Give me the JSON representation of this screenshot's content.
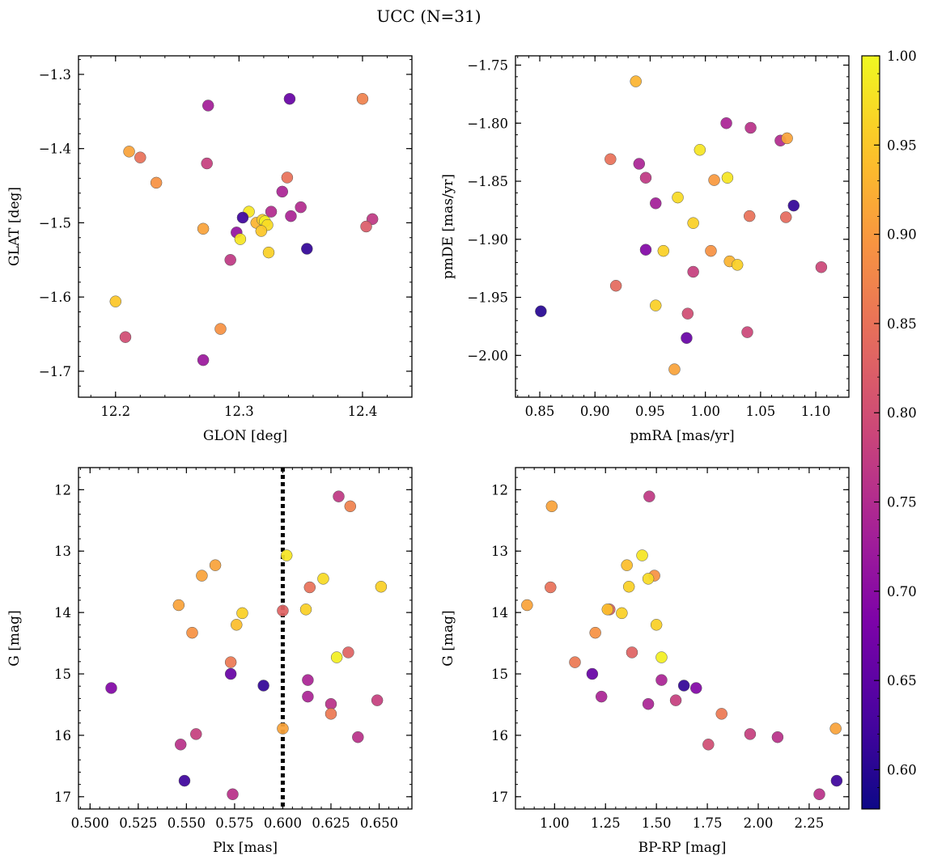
{
  "figure": {
    "title": "UCC (N=31)"
  },
  "colorbar": {
    "min": 0.578,
    "max": 1.0,
    "ticks": [
      0.6,
      0.65,
      0.7,
      0.75,
      0.8,
      0.85,
      0.9,
      0.95,
      1.0
    ],
    "tick_labels": [
      "0.60",
      "0.65",
      "0.70",
      "0.75",
      "0.80",
      "0.85",
      "0.90",
      "0.95",
      "1.00"
    ],
    "colormap": "plasma"
  },
  "chart_data": [
    {
      "type": "scatter",
      "id": "glon-glat",
      "xlabel": "GLON [deg]",
      "ylabel": "GLAT [deg]",
      "xlim": [
        12.17,
        12.44
      ],
      "ylim": [
        -1.735,
        -1.275
      ],
      "y_inverted": false,
      "xticks": [
        12.2,
        12.3,
        12.4
      ],
      "xtick_labels": [
        "12.2",
        "12.3",
        "12.4"
      ],
      "yticks": [
        -1.3,
        -1.4,
        -1.5,
        -1.6,
        -1.7
      ],
      "ytick_labels": [
        "−1.3",
        "−1.4",
        "−1.5",
        "−1.6",
        "−1.7"
      ],
      "points": [
        {
          "x": 12.275,
          "y": -1.342,
          "c": 0.73
        },
        {
          "x": 12.341,
          "y": -1.333,
          "c": 0.66
        },
        {
          "x": 12.4,
          "y": -1.333,
          "c": 0.87
        },
        {
          "x": 12.211,
          "y": -1.404,
          "c": 0.91
        },
        {
          "x": 12.22,
          "y": -1.412,
          "c": 0.85
        },
        {
          "x": 12.274,
          "y": -1.42,
          "c": 0.78
        },
        {
          "x": 12.233,
          "y": -1.446,
          "c": 0.89
        },
        {
          "x": 12.339,
          "y": -1.439,
          "c": 0.85
        },
        {
          "x": 12.335,
          "y": -1.458,
          "c": 0.74
        },
        {
          "x": 12.35,
          "y": -1.479,
          "c": 0.75
        },
        {
          "x": 12.342,
          "y": -1.491,
          "c": 0.74
        },
        {
          "x": 12.326,
          "y": -1.485,
          "c": 0.75
        },
        {
          "x": 12.308,
          "y": -1.485,
          "c": 0.98
        },
        {
          "x": 12.303,
          "y": -1.493,
          "c": 0.62
        },
        {
          "x": 12.314,
          "y": -1.5,
          "c": 0.93
        },
        {
          "x": 12.319,
          "y": -1.496,
          "c": 0.96
        },
        {
          "x": 12.321,
          "y": -1.498,
          "c": 0.99
        },
        {
          "x": 12.323,
          "y": -1.503,
          "c": 0.97
        },
        {
          "x": 12.318,
          "y": -1.511,
          "c": 0.95
        },
        {
          "x": 12.298,
          "y": -1.513,
          "c": 0.71
        },
        {
          "x": 12.271,
          "y": -1.508,
          "c": 0.91
        },
        {
          "x": 12.301,
          "y": -1.522,
          "c": 0.98
        },
        {
          "x": 12.324,
          "y": -1.54,
          "c": 0.96
        },
        {
          "x": 12.355,
          "y": -1.535,
          "c": 0.61
        },
        {
          "x": 12.408,
          "y": -1.495,
          "c": 0.77
        },
        {
          "x": 12.403,
          "y": -1.505,
          "c": 0.82
        },
        {
          "x": 12.293,
          "y": -1.55,
          "c": 0.77
        },
        {
          "x": 12.2,
          "y": -1.606,
          "c": 0.95
        },
        {
          "x": 12.208,
          "y": -1.654,
          "c": 0.8
        },
        {
          "x": 12.285,
          "y": -1.643,
          "c": 0.89
        },
        {
          "x": 12.271,
          "y": -1.685,
          "c": 0.72
        }
      ]
    },
    {
      "type": "scatter",
      "id": "pmra-pmde",
      "xlabel": "pmRA [mas/yr]",
      "ylabel": "pmDE [mas/yr]",
      "xlim": [
        0.828,
        1.13
      ],
      "ylim": [
        -2.036,
        -1.742
      ],
      "y_inverted": false,
      "xticks": [
        0.85,
        0.9,
        0.95,
        1.0,
        1.05,
        1.1
      ],
      "xtick_labels": [
        "0.85",
        "0.90",
        "0.95",
        "1.00",
        "1.05",
        "1.10"
      ],
      "yticks": [
        -1.75,
        -1.8,
        -1.85,
        -1.9,
        -1.95,
        -2.0
      ],
      "ytick_labels": [
        "−1.75",
        "−1.80",
        "−1.85",
        "−1.90",
        "−1.95",
        "−2.00"
      ],
      "points": [
        {
          "x": 0.937,
          "y": -1.764,
          "c": 0.93
        },
        {
          "x": 1.019,
          "y": -1.8,
          "c": 0.74
        },
        {
          "x": 1.041,
          "y": -1.804,
          "c": 0.76
        },
        {
          "x": 1.068,
          "y": -1.815,
          "c": 0.75
        },
        {
          "x": 1.074,
          "y": -1.813,
          "c": 0.91
        },
        {
          "x": 0.995,
          "y": -1.823,
          "c": 0.98
        },
        {
          "x": 0.914,
          "y": -1.831,
          "c": 0.85
        },
        {
          "x": 0.94,
          "y": -1.835,
          "c": 0.74
        },
        {
          "x": 0.946,
          "y": -1.847,
          "c": 0.77
        },
        {
          "x": 1.02,
          "y": -1.847,
          "c": 0.98
        },
        {
          "x": 1.008,
          "y": -1.849,
          "c": 0.9
        },
        {
          "x": 0.975,
          "y": -1.864,
          "c": 0.97
        },
        {
          "x": 0.955,
          "y": -1.869,
          "c": 0.73
        },
        {
          "x": 1.08,
          "y": -1.871,
          "c": 0.61
        },
        {
          "x": 1.04,
          "y": -1.88,
          "c": 0.85
        },
        {
          "x": 1.073,
          "y": -1.881,
          "c": 0.84
        },
        {
          "x": 0.989,
          "y": -1.886,
          "c": 0.96
        },
        {
          "x": 0.946,
          "y": -1.909,
          "c": 0.69
        },
        {
          "x": 0.962,
          "y": -1.91,
          "c": 0.96
        },
        {
          "x": 1.005,
          "y": -1.91,
          "c": 0.89
        },
        {
          "x": 1.022,
          "y": -1.919,
          "c": 0.93
        },
        {
          "x": 1.029,
          "y": -1.922,
          "c": 0.96
        },
        {
          "x": 1.105,
          "y": -1.924,
          "c": 0.79
        },
        {
          "x": 0.989,
          "y": -1.928,
          "c": 0.78
        },
        {
          "x": 0.919,
          "y": -1.94,
          "c": 0.84
        },
        {
          "x": 0.955,
          "y": -1.957,
          "c": 0.96
        },
        {
          "x": 0.851,
          "y": -1.962,
          "c": 0.6
        },
        {
          "x": 0.984,
          "y": -1.964,
          "c": 0.8
        },
        {
          "x": 1.038,
          "y": -1.98,
          "c": 0.79
        },
        {
          "x": 0.983,
          "y": -1.985,
          "c": 0.66
        },
        {
          "x": 0.972,
          "y": -2.012,
          "c": 0.91
        }
      ]
    },
    {
      "type": "scatter",
      "id": "plx-g",
      "xlabel": "Plx [mas]",
      "ylabel": "G [mag]",
      "xlim": [
        0.494,
        0.667
      ],
      "ylim": [
        11.64,
        17.2
      ],
      "y_inverted": true,
      "vline": 0.6,
      "xticks": [
        0.5,
        0.525,
        0.55,
        0.575,
        0.6,
        0.625,
        0.65
      ],
      "xtick_labels": [
        "0.500",
        "0.525",
        "0.550",
        "0.575",
        "0.600",
        "0.625",
        "0.650"
      ],
      "yticks": [
        12,
        13,
        14,
        15,
        16,
        17
      ],
      "ytick_labels": [
        "12",
        "13",
        "14",
        "15",
        "16",
        "17"
      ],
      "points": [
        {
          "x": 0.629,
          "y": 12.11,
          "c": 0.77
        },
        {
          "x": 0.635,
          "y": 12.27,
          "c": 0.87
        },
        {
          "x": 0.602,
          "y": 13.07,
          "c": 0.98
        },
        {
          "x": 0.565,
          "y": 13.23,
          "c": 0.91
        },
        {
          "x": 0.558,
          "y": 13.4,
          "c": 0.91
        },
        {
          "x": 0.621,
          "y": 13.45,
          "c": 0.97
        },
        {
          "x": 0.651,
          "y": 13.58,
          "c": 0.96
        },
        {
          "x": 0.614,
          "y": 13.59,
          "c": 0.85
        },
        {
          "x": 0.546,
          "y": 13.88,
          "c": 0.91
        },
        {
          "x": 0.612,
          "y": 13.95,
          "c": 0.96
        },
        {
          "x": 0.6,
          "y": 13.97,
          "c": 0.83
        },
        {
          "x": 0.579,
          "y": 14.01,
          "c": 0.96
        },
        {
          "x": 0.576,
          "y": 14.2,
          "c": 0.94
        },
        {
          "x": 0.553,
          "y": 14.33,
          "c": 0.89
        },
        {
          "x": 0.634,
          "y": 14.65,
          "c": 0.83
        },
        {
          "x": 0.628,
          "y": 14.73,
          "c": 0.99
        },
        {
          "x": 0.573,
          "y": 14.81,
          "c": 0.86
        },
        {
          "x": 0.573,
          "y": 15.0,
          "c": 0.66
        },
        {
          "x": 0.613,
          "y": 15.1,
          "c": 0.74
        },
        {
          "x": 0.59,
          "y": 15.19,
          "c": 0.61
        },
        {
          "x": 0.511,
          "y": 15.23,
          "c": 0.69
        },
        {
          "x": 0.613,
          "y": 15.37,
          "c": 0.74
        },
        {
          "x": 0.649,
          "y": 15.43,
          "c": 0.78
        },
        {
          "x": 0.625,
          "y": 15.49,
          "c": 0.76
        },
        {
          "x": 0.625,
          "y": 15.65,
          "c": 0.86
        },
        {
          "x": 0.6,
          "y": 15.89,
          "c": 0.91
        },
        {
          "x": 0.555,
          "y": 15.98,
          "c": 0.78
        },
        {
          "x": 0.639,
          "y": 16.03,
          "c": 0.76
        },
        {
          "x": 0.547,
          "y": 16.15,
          "c": 0.76
        },
        {
          "x": 0.549,
          "y": 16.74,
          "c": 0.62
        },
        {
          "x": 0.574,
          "y": 16.96,
          "c": 0.76
        }
      ]
    },
    {
      "type": "scatter",
      "id": "bprp-g",
      "xlabel": "BP-RP [mag]",
      "ylabel": "G [mag]",
      "xlim": [
        0.808,
        2.445
      ],
      "ylim": [
        11.64,
        17.2
      ],
      "y_inverted": true,
      "xticks": [
        1.0,
        1.25,
        1.5,
        1.75,
        2.0,
        2.25
      ],
      "xtick_labels": [
        "1.00",
        "1.25",
        "1.50",
        "1.75",
        "2.00",
        "2.25"
      ],
      "yticks": [
        12,
        13,
        14,
        15,
        16,
        17
      ],
      "ytick_labels": [
        "12",
        "13",
        "14",
        "15",
        "16",
        "17"
      ],
      "points": [
        {
          "x": 1.465,
          "y": 12.11,
          "c": 0.77
        },
        {
          "x": 0.986,
          "y": 12.27,
          "c": 0.91
        },
        {
          "x": 1.43,
          "y": 13.07,
          "c": 0.98
        },
        {
          "x": 1.355,
          "y": 13.23,
          "c": 0.94
        },
        {
          "x": 1.49,
          "y": 13.4,
          "c": 0.89
        },
        {
          "x": 1.46,
          "y": 13.45,
          "c": 0.97
        },
        {
          "x": 0.98,
          "y": 13.59,
          "c": 0.85
        },
        {
          "x": 1.365,
          "y": 13.58,
          "c": 0.96
        },
        {
          "x": 0.865,
          "y": 13.88,
          "c": 0.91
        },
        {
          "x": 1.27,
          "y": 13.95,
          "c": 0.83
        },
        {
          "x": 1.26,
          "y": 13.95,
          "c": 0.94
        },
        {
          "x": 1.33,
          "y": 14.01,
          "c": 0.96
        },
        {
          "x": 1.5,
          "y": 14.2,
          "c": 0.96
        },
        {
          "x": 1.2,
          "y": 14.33,
          "c": 0.89
        },
        {
          "x": 1.38,
          "y": 14.65,
          "c": 0.83
        },
        {
          "x": 1.525,
          "y": 14.73,
          "c": 0.99
        },
        {
          "x": 1.1,
          "y": 14.81,
          "c": 0.86
        },
        {
          "x": 1.185,
          "y": 15.0,
          "c": 0.66
        },
        {
          "x": 1.525,
          "y": 15.1,
          "c": 0.74
        },
        {
          "x": 1.635,
          "y": 15.19,
          "c": 0.61
        },
        {
          "x": 1.695,
          "y": 15.23,
          "c": 0.69
        },
        {
          "x": 1.23,
          "y": 15.37,
          "c": 0.74
        },
        {
          "x": 1.595,
          "y": 15.43,
          "c": 0.78
        },
        {
          "x": 1.46,
          "y": 15.49,
          "c": 0.74
        },
        {
          "x": 1.82,
          "y": 15.65,
          "c": 0.86
        },
        {
          "x": 2.38,
          "y": 15.89,
          "c": 0.91
        },
        {
          "x": 1.96,
          "y": 15.98,
          "c": 0.78
        },
        {
          "x": 2.095,
          "y": 16.03,
          "c": 0.76
        },
        {
          "x": 1.755,
          "y": 16.15,
          "c": 0.8
        },
        {
          "x": 2.385,
          "y": 16.74,
          "c": 0.62
        },
        {
          "x": 2.3,
          "y": 16.96,
          "c": 0.76
        }
      ]
    }
  ]
}
